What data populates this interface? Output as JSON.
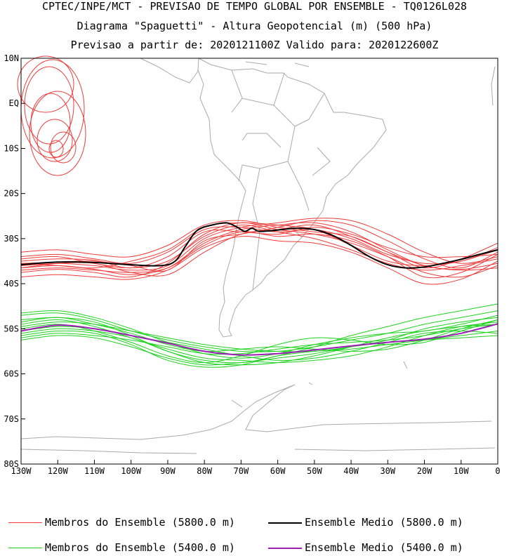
{
  "header": {
    "line1": "CPTEC/INPE/MCT - PREVISAO DE TEMPO GLOBAL POR ENSEMBLE - TQ0126L028",
    "line2": "Diagrama \"Spaguetti\" - Altura Geopotencial (m) (500 hPa)",
    "line3": "Previsao a partir de: 2020121100Z  Valido para: 2020122600Z"
  },
  "legend": {
    "members_5800": "Membros do Ensemble (5800.0 m)",
    "mean_5800": "Ensemble Medio (5800.0 m)",
    "members_5400": "Membros do Ensemble (5400.0 m)",
    "mean_5400": "Ensemble Medio (5400.0 m)"
  },
  "colors": {
    "members_5800": "#ef3b3b",
    "mean_5800": "#000000",
    "members_5400": "#1fd11f",
    "mean_5400": "#9b1fb4",
    "coast": "#aaaaaa"
  },
  "chart_data": {
    "type": "line",
    "title": "Diagrama \"Spaguetti\" - Altura Geopotencial (m) (500 hPa)",
    "xlim": [
      -130,
      0
    ],
    "ylim": [
      -80,
      10
    ],
    "x_ticks": [
      -130,
      -120,
      -110,
      -100,
      -90,
      -80,
      -70,
      -60,
      -50,
      -40,
      -30,
      -20,
      -10,
      0
    ],
    "x_tick_labels": [
      "130W",
      "120W",
      "110W",
      "100W",
      "90W",
      "80W",
      "70W",
      "60W",
      "50W",
      "40W",
      "30W",
      "20W",
      "10W",
      "0"
    ],
    "y_ticks": [
      10,
      0,
      -10,
      -20,
      -30,
      -40,
      -50,
      -60,
      -70,
      -80
    ],
    "y_tick_labels": [
      "10N",
      "EQ",
      "10S",
      "20S",
      "30S",
      "40S",
      "50S",
      "60S",
      "70S",
      "80S"
    ],
    "series": [
      {
        "name": "Ensemble Medio (5800.0 m)",
        "role": "mean_5800",
        "x": [
          -130,
          -120,
          -110,
          -100,
          -92,
          -88,
          -85,
          -82,
          -78,
          -74,
          -71,
          -69,
          -67,
          -65,
          -60,
          -55,
          -50,
          -45,
          -40,
          -35,
          -30,
          -25,
          -20,
          -15,
          -10,
          -5,
          0
        ],
        "y": [
          -35.8,
          -35.2,
          -35.3,
          -35.8,
          -36.0,
          -35.0,
          -31.5,
          -28.2,
          -27.0,
          -26.5,
          -27.5,
          -28.4,
          -27.7,
          -28.4,
          -28.1,
          -27.7,
          -28.0,
          -29.3,
          -31.5,
          -34.0,
          -35.8,
          -36.5,
          -36.3,
          -35.5,
          -34.6,
          -33.5,
          -32.5
        ]
      },
      {
        "name": "Ensemble Medio (5400.0 m)",
        "role": "mean_5400",
        "x": [
          -130,
          -120,
          -110,
          -100,
          -90,
          -80,
          -70,
          -60,
          -50,
          -40,
          -30,
          -20,
          -10,
          0
        ],
        "y": [
          -50.5,
          -49.2,
          -50.0,
          -51.5,
          -53.2,
          -55.0,
          -55.8,
          -55.5,
          -54.7,
          -53.8,
          -53.0,
          -52.3,
          -51.0,
          -48.9
        ]
      },
      {
        "name": "Membros do Ensemble (5800.0 m)",
        "role": "members_5800",
        "x": [
          -130,
          -120,
          -110,
          -100,
          -90,
          -80,
          -70,
          -60,
          -50,
          -40,
          -30,
          -20,
          -10,
          0
        ],
        "members": [
          [
            -34.0,
            -33.5,
            -34.5,
            -35.5,
            -33.0,
            -28.0,
            -27.5,
            -28.5,
            -28.0,
            -30.0,
            -33.5,
            -35.5,
            -35.0,
            -32.0
          ],
          [
            -36.5,
            -36.0,
            -36.8,
            -38.0,
            -36.5,
            -31.0,
            -28.0,
            -27.0,
            -26.5,
            -28.5,
            -32.5,
            -36.0,
            -36.8,
            -35.5
          ],
          [
            -35.5,
            -35.2,
            -35.0,
            -36.0,
            -37.0,
            -30.5,
            -29.0,
            -27.5,
            -26.0,
            -27.0,
            -30.5,
            -34.5,
            -36.5,
            -33.0
          ],
          [
            -37.5,
            -36.8,
            -37.5,
            -38.5,
            -35.5,
            -29.0,
            -26.5,
            -28.0,
            -29.0,
            -31.0,
            -34.0,
            -37.5,
            -38.5,
            -36.0
          ],
          [
            -33.0,
            -32.5,
            -33.5,
            -34.0,
            -31.5,
            -27.0,
            -26.0,
            -27.5,
            -28.5,
            -29.5,
            -33.0,
            -36.5,
            -34.5,
            -31.0
          ],
          [
            -38.5,
            -38.0,
            -38.5,
            -39.0,
            -37.0,
            -32.0,
            -29.5,
            -30.5,
            -31.0,
            -33.0,
            -36.5,
            -40.0,
            -39.0,
            -35.0
          ],
          [
            -35.0,
            -34.5,
            -34.8,
            -36.5,
            -34.0,
            -28.5,
            -28.5,
            -29.0,
            -27.5,
            -29.0,
            -32.0,
            -34.0,
            -34.0,
            -33.5
          ],
          [
            -36.0,
            -35.5,
            -36.0,
            -37.0,
            -36.0,
            -30.0,
            -27.5,
            -26.5,
            -25.5,
            -26.0,
            -29.0,
            -33.0,
            -35.5,
            -34.0
          ],
          [
            -34.5,
            -34.0,
            -35.5,
            -36.5,
            -35.0,
            -29.5,
            -27.0,
            -28.5,
            -30.0,
            -32.5,
            -35.5,
            -37.0,
            -36.0,
            -34.5
          ],
          [
            -37.0,
            -36.5,
            -37.0,
            -37.5,
            -36.5,
            -31.5,
            -28.5,
            -29.5,
            -29.0,
            -30.5,
            -34.0,
            -38.5,
            -37.5,
            -33.5
          ],
          [
            -35.5,
            -36.0,
            -36.5,
            -35.0,
            -32.5,
            -27.5,
            -26.5,
            -27.0,
            -28.0,
            -31.5,
            -35.0,
            -36.0,
            -35.0,
            -32.5
          ],
          [
            -36.5,
            -35.5,
            -35.5,
            -37.5,
            -38.0,
            -33.0,
            -29.0,
            -28.0,
            -27.0,
            -29.5,
            -33.0,
            -36.0,
            -37.0,
            -36.5
          ]
        ]
      },
      {
        "name": "Membros do Ensemble (5400.0 m)",
        "role": "members_5400",
        "x": [
          -130,
          -120,
          -110,
          -100,
          -90,
          -80,
          -70,
          -60,
          -50,
          -40,
          -30,
          -20,
          -10,
          0
        ],
        "members": [
          [
            -46.5,
            -46.0,
            -47.5,
            -50.0,
            -53.0,
            -55.5,
            -56.5,
            -55.5,
            -53.5,
            -52.0,
            -51.0,
            -50.5,
            -49.0,
            -47.0
          ],
          [
            -48.0,
            -47.5,
            -48.5,
            -51.5,
            -55.0,
            -57.0,
            -57.5,
            -56.0,
            -54.0,
            -51.5,
            -49.5,
            -47.5,
            -46.0,
            -44.5
          ],
          [
            -50.0,
            -49.0,
            -50.5,
            -53.0,
            -56.0,
            -57.5,
            -56.0,
            -53.5,
            -52.0,
            -52.5,
            -53.5,
            -53.0,
            -50.5,
            -48.0
          ],
          [
            -52.0,
            -51.0,
            -51.5,
            -52.5,
            -54.0,
            -55.5,
            -55.5,
            -54.5,
            -53.5,
            -53.0,
            -52.5,
            -51.5,
            -50.0,
            -49.0
          ],
          [
            -49.0,
            -48.0,
            -49.5,
            -52.0,
            -54.5,
            -56.5,
            -57.0,
            -57.5,
            -57.0,
            -56.0,
            -54.0,
            -51.5,
            -49.5,
            -48.5
          ],
          [
            -51.5,
            -50.5,
            -51.0,
            -53.5,
            -57.0,
            -58.5,
            -58.0,
            -56.0,
            -55.0,
            -54.5,
            -53.5,
            -52.5,
            -51.5,
            -50.5
          ],
          [
            -47.0,
            -46.5,
            -48.0,
            -50.5,
            -52.5,
            -54.0,
            -55.0,
            -55.0,
            -54.0,
            -52.5,
            -51.0,
            -49.0,
            -47.5,
            -46.0
          ],
          [
            -50.5,
            -49.5,
            -50.0,
            -51.5,
            -53.0,
            -54.5,
            -56.0,
            -57.0,
            -56.5,
            -55.0,
            -53.0,
            -51.0,
            -50.5,
            -51.0
          ],
          [
            -52.5,
            -51.5,
            -52.0,
            -54.0,
            -56.5,
            -58.0,
            -57.5,
            -56.5,
            -55.5,
            -54.0,
            -53.0,
            -52.5,
            -52.0,
            -51.5
          ],
          [
            -48.5,
            -47.5,
            -49.0,
            -51.0,
            -53.5,
            -55.0,
            -54.5,
            -54.0,
            -54.5,
            -55.0,
            -54.5,
            -52.5,
            -50.0,
            -48.0
          ],
          [
            -49.5,
            -48.5,
            -49.0,
            -50.5,
            -52.0,
            -53.5,
            -54.5,
            -55.0,
            -55.0,
            -54.0,
            -52.5,
            -50.0,
            -48.5,
            -47.5
          ],
          [
            -51.0,
            -50.0,
            -50.5,
            -52.0,
            -55.0,
            -57.5,
            -58.0,
            -57.5,
            -56.0,
            -54.0,
            -52.0,
            -50.5,
            -49.5,
            -49.0
          ]
        ]
      }
    ]
  }
}
